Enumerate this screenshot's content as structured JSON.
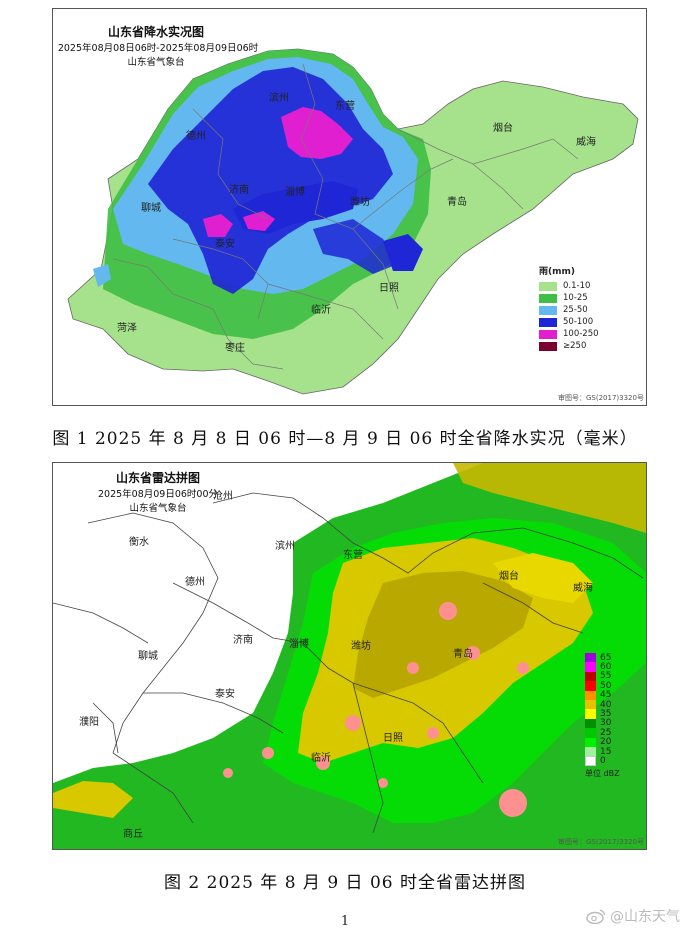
{
  "figure1": {
    "map_title": "山东省降水实况图",
    "map_period": "2025年08月08日06时-2025年08月09日06时",
    "map_agency": "山东省气象台",
    "cities": [
      "滨州",
      "东营",
      "德州",
      "烟台",
      "威海",
      "济南",
      "淄博",
      "潍坊",
      "青岛",
      "聊城",
      "泰安",
      "日照",
      "临沂",
      "菏泽",
      "枣庄"
    ],
    "legend_title": "雨(mm)",
    "legend": [
      {
        "label": "0.1-10",
        "color": "#a6e28b"
      },
      {
        "label": "10-25",
        "color": "#3fbf45"
      },
      {
        "label": "25-50",
        "color": "#62b8ef"
      },
      {
        "label": "50-100",
        "color": "#1f26d6"
      },
      {
        "label": "100-250",
        "color": "#e020d0"
      },
      {
        "label": "≥250",
        "color": "#7a0030"
      }
    ],
    "review_no": "审图号：GS(2017)3320号",
    "caption": "图 1  2025 年 8 月 8 日 06 时—8 月 9 日 06 时全省降水实况（毫米）"
  },
  "figure2": {
    "map_title": "山东省雷达拼图",
    "map_time": "2025年08月09日06时00分",
    "map_agency": "山东省气象台",
    "cities": [
      "沧州",
      "衡水",
      "滨州",
      "东营",
      "德州",
      "烟台",
      "威海",
      "济南",
      "淄博",
      "潍坊",
      "聊城",
      "泰安",
      "青岛",
      "濮阳",
      "临沂",
      "日照",
      "商丘"
    ],
    "scale": [
      {
        "label": "65",
        "color": "#a000e0"
      },
      {
        "label": "60",
        "color": "#ff00ff"
      },
      {
        "label": "55",
        "color": "#c00000"
      },
      {
        "label": "50",
        "color": "#ff0000"
      },
      {
        "label": "45",
        "color": "#ff9000"
      },
      {
        "label": "40",
        "color": "#e8c000"
      },
      {
        "label": "35",
        "color": "#ffff00"
      },
      {
        "label": "30",
        "color": "#008f00"
      },
      {
        "label": "25",
        "color": "#00c800"
      },
      {
        "label": "20",
        "color": "#00f000"
      },
      {
        "label": "15",
        "color": "#a0f0a0"
      },
      {
        "label": "0",
        "color": "#ffffff"
      }
    ],
    "unit": "单位 dBZ",
    "review_no": "审图号：GS(2017)3320号",
    "caption": "图 2  2025 年 8 月 9 日 06 时全省雷达拼图"
  },
  "page_number": "1",
  "watermark": "@山东天气"
}
